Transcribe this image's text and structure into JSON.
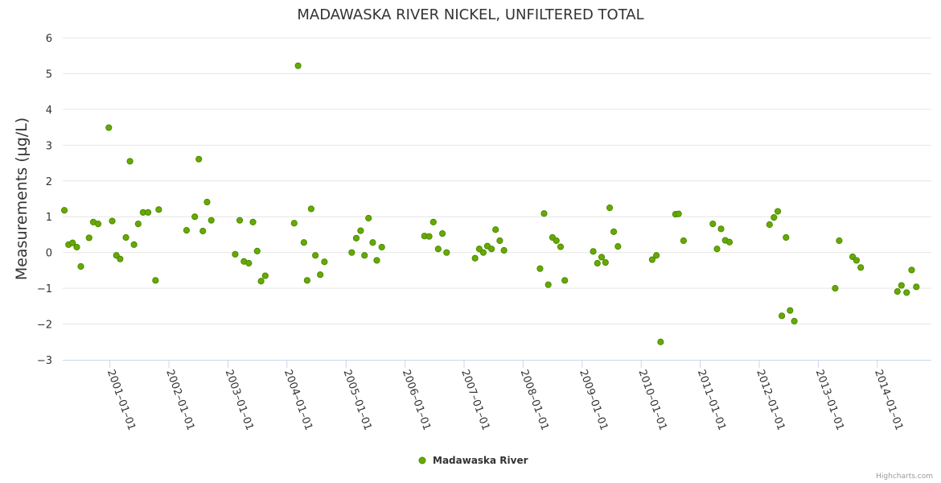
{
  "chart_data": {
    "type": "scatter",
    "title": "MADAWASKA RIVER NICKEL, UNFILTERED TOTAL",
    "xlabel": "",
    "ylabel": "Measurements (µg/L)",
    "ylim": [
      -3,
      6
    ],
    "yticks": [
      -3,
      -2,
      -1,
      0,
      1,
      2,
      3,
      4,
      5,
      6
    ],
    "xlim": [
      "2000-03-15",
      "2014-12-01"
    ],
    "xticks": [
      "2001-01-01",
      "2002-01-01",
      "2003-01-01",
      "2004-01-01",
      "2005-01-01",
      "2006-01-01",
      "2007-01-01",
      "2008-01-01",
      "2009-01-01",
      "2010-01-01",
      "2011-01-01",
      "2012-01-01",
      "2013-01-01",
      "2014-01-01"
    ],
    "grid": true,
    "legend_position": "bottom-center",
    "series": [
      {
        "name": "Madawaska River",
        "color": "#66aa00",
        "points": [
          [
            "2000-03-25",
            1.18
          ],
          [
            "2000-04-20",
            0.22
          ],
          [
            "2000-05-15",
            0.27
          ],
          [
            "2000-06-10",
            0.15
          ],
          [
            "2000-07-05",
            -0.39
          ],
          [
            "2000-08-25",
            0.41
          ],
          [
            "2000-09-20",
            0.85
          ],
          [
            "2000-10-20",
            0.8
          ],
          [
            "2000-12-25",
            3.49
          ],
          [
            "2001-01-15",
            0.88
          ],
          [
            "2001-02-10",
            -0.08
          ],
          [
            "2001-03-05",
            -0.18
          ],
          [
            "2001-04-10",
            0.42
          ],
          [
            "2001-05-05",
            2.55
          ],
          [
            "2001-05-30",
            0.22
          ],
          [
            "2001-06-25",
            0.8
          ],
          [
            "2001-07-25",
            1.12
          ],
          [
            "2001-08-25",
            1.12
          ],
          [
            "2001-10-10",
            -0.78
          ],
          [
            "2001-10-30",
            1.2
          ],
          [
            "2002-04-20",
            0.62
          ],
          [
            "2002-06-10",
            1.0
          ],
          [
            "2002-07-05",
            2.61
          ],
          [
            "2002-07-30",
            0.6
          ],
          [
            "2002-08-25",
            1.41
          ],
          [
            "2002-09-20",
            0.9
          ],
          [
            "2003-02-15",
            -0.05
          ],
          [
            "2003-03-15",
            0.9
          ],
          [
            "2003-04-10",
            -0.25
          ],
          [
            "2003-05-10",
            -0.3
          ],
          [
            "2003-06-05",
            0.85
          ],
          [
            "2003-07-01",
            0.04
          ],
          [
            "2003-07-25",
            -0.8
          ],
          [
            "2003-08-20",
            -0.65
          ],
          [
            "2004-02-15",
            0.82
          ],
          [
            "2004-03-10",
            5.22
          ],
          [
            "2004-04-15",
            0.28
          ],
          [
            "2004-05-05",
            -0.78
          ],
          [
            "2004-05-30",
            1.22
          ],
          [
            "2004-06-25",
            -0.08
          ],
          [
            "2004-07-25",
            -0.62
          ],
          [
            "2004-08-20",
            -0.26
          ],
          [
            "2005-02-05",
            0.0
          ],
          [
            "2005-03-05",
            0.4
          ],
          [
            "2005-04-01",
            0.61
          ],
          [
            "2005-04-25",
            -0.08
          ],
          [
            "2005-05-20",
            0.96
          ],
          [
            "2005-06-15",
            0.28
          ],
          [
            "2005-07-10",
            -0.22
          ],
          [
            "2005-08-10",
            0.15
          ],
          [
            "2006-05-01",
            0.46
          ],
          [
            "2006-05-30",
            0.45
          ],
          [
            "2006-06-25",
            0.85
          ],
          [
            "2006-07-25",
            0.1
          ],
          [
            "2006-08-20",
            0.53
          ],
          [
            "2006-09-15",
            0.0
          ],
          [
            "2007-03-10",
            -0.16
          ],
          [
            "2007-04-05",
            0.1
          ],
          [
            "2007-04-30",
            0.0
          ],
          [
            "2007-05-25",
            0.18
          ],
          [
            "2007-06-20",
            0.1
          ],
          [
            "2007-07-15",
            0.64
          ],
          [
            "2007-08-10",
            0.33
          ],
          [
            "2007-09-05",
            0.06
          ],
          [
            "2008-04-15",
            -0.45
          ],
          [
            "2008-05-10",
            1.09
          ],
          [
            "2008-06-05",
            -0.9
          ],
          [
            "2008-07-01",
            0.42
          ],
          [
            "2008-07-25",
            0.33
          ],
          [
            "2008-08-20",
            0.16
          ],
          [
            "2008-09-15",
            -0.78
          ],
          [
            "2009-03-10",
            0.03
          ],
          [
            "2009-04-05",
            -0.3
          ],
          [
            "2009-05-01",
            -0.13
          ],
          [
            "2009-05-25",
            -0.28
          ],
          [
            "2009-06-20",
            1.25
          ],
          [
            "2009-07-15",
            0.58
          ],
          [
            "2009-08-10",
            0.17
          ],
          [
            "2010-03-10",
            -0.2
          ],
          [
            "2010-04-05",
            -0.08
          ],
          [
            "2010-05-01",
            -2.5
          ],
          [
            "2010-08-01",
            1.07
          ],
          [
            "2010-08-20",
            1.08
          ],
          [
            "2010-09-20",
            0.33
          ],
          [
            "2011-03-20",
            0.8
          ],
          [
            "2011-04-15",
            0.1
          ],
          [
            "2011-05-10",
            0.66
          ],
          [
            "2011-06-05",
            0.34
          ],
          [
            "2011-07-01",
            0.29
          ],
          [
            "2012-03-05",
            0.78
          ],
          [
            "2012-04-01",
            0.98
          ],
          [
            "2012-04-25",
            1.15
          ],
          [
            "2012-05-20",
            -1.77
          ],
          [
            "2012-06-15",
            0.42
          ],
          [
            "2012-07-10",
            -1.62
          ],
          [
            "2012-08-05",
            -1.92
          ],
          [
            "2013-04-15",
            -1.0
          ],
          [
            "2013-05-10",
            0.33
          ],
          [
            "2013-08-01",
            -0.12
          ],
          [
            "2013-08-25",
            -0.22
          ],
          [
            "2013-09-20",
            -0.42
          ],
          [
            "2014-05-05",
            -1.09
          ],
          [
            "2014-05-30",
            -0.92
          ],
          [
            "2014-07-01",
            -1.12
          ],
          [
            "2014-08-01",
            -0.49
          ],
          [
            "2014-08-30",
            -0.96
          ]
        ]
      }
    ]
  },
  "credits": "Highcharts.com"
}
